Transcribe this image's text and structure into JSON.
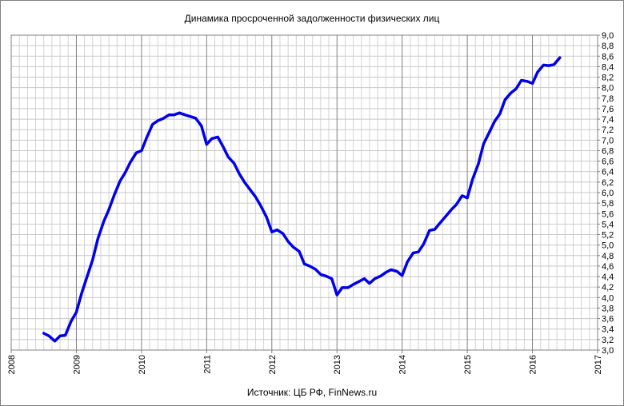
{
  "chart_data": {
    "type": "line",
    "title": "Динамика просроченной задолженности физических лиц",
    "source": "Источник: ЦБ РФ, FinNews.ru",
    "xlabel": "",
    "ylabel": "",
    "xlim": [
      2008,
      2017
    ],
    "ylim": [
      3.0,
      9.0
    ],
    "x_ticks": [
      "2008",
      "2009",
      "2010",
      "2011",
      "2012",
      "2013",
      "2014",
      "2015",
      "2016",
      "2017"
    ],
    "y_ticks": [
      "3,0",
      "3,2",
      "3,4",
      "3,6",
      "3,8",
      "4,0",
      "4,2",
      "4,4",
      "4,6",
      "4,8",
      "5,0",
      "5,2",
      "5,4",
      "5,6",
      "5,8",
      "6,0",
      "6,2",
      "6,4",
      "6,6",
      "6,8",
      "7,0",
      "7,2",
      "7,4",
      "7,6",
      "7,8",
      "8,0",
      "8,2",
      "8,4",
      "8,6",
      "8,8",
      "9,0"
    ],
    "grid": true,
    "line_color": "#0000ee",
    "series": [
      {
        "x": [
          2008.5,
          2008.58,
          2008.67,
          2008.75,
          2008.83,
          2008.92,
          2009.0,
          2009.08,
          2009.17,
          2009.25,
          2009.33,
          2009.42,
          2009.5,
          2009.58,
          2009.67,
          2009.75,
          2009.83,
          2009.92,
          2010.0,
          2010.08,
          2010.17,
          2010.25,
          2010.33,
          2010.42,
          2010.5,
          2010.58,
          2010.67,
          2010.75,
          2010.83,
          2010.92,
          2011.0,
          2011.08,
          2011.17,
          2011.25,
          2011.33,
          2011.42,
          2011.5,
          2011.58,
          2011.67,
          2011.75,
          2011.83,
          2011.92,
          2012.0,
          2012.08,
          2012.17,
          2012.25,
          2012.33,
          2012.42,
          2012.5,
          2012.58,
          2012.67,
          2012.75,
          2012.83,
          2012.92,
          2013.0,
          2013.08,
          2013.17,
          2013.25,
          2013.33,
          2013.42,
          2013.5,
          2013.58,
          2013.67,
          2013.75,
          2013.83,
          2013.92,
          2014.0,
          2014.08,
          2014.17,
          2014.25,
          2014.33,
          2014.42,
          2014.5,
          2014.58,
          2014.67,
          2014.75,
          2014.83,
          2014.92,
          2015.0,
          2015.08,
          2015.17,
          2015.25,
          2015.33,
          2015.42,
          2015.5,
          2015.58,
          2015.67,
          2015.75,
          2015.83,
          2015.92,
          2016.0,
          2016.08,
          2016.17,
          2016.25,
          2016.33,
          2016.42
        ],
        "y": [
          3.32,
          3.27,
          3.17,
          3.27,
          3.28,
          3.55,
          3.72,
          4.08,
          4.42,
          4.72,
          5.12,
          5.45,
          5.68,
          5.95,
          6.22,
          6.38,
          6.58,
          6.76,
          6.8,
          7.05,
          7.3,
          7.37,
          7.41,
          7.48,
          7.48,
          7.52,
          7.48,
          7.45,
          7.42,
          7.27,
          6.92,
          7.03,
          7.06,
          6.88,
          6.68,
          6.56,
          6.36,
          6.2,
          6.05,
          5.92,
          5.75,
          5.53,
          5.25,
          5.29,
          5.22,
          5.07,
          4.96,
          4.88,
          4.64,
          4.6,
          4.54,
          4.44,
          4.41,
          4.36,
          4.05,
          4.19,
          4.19,
          4.25,
          4.3,
          4.36,
          4.27,
          4.36,
          4.41,
          4.48,
          4.53,
          4.5,
          4.42,
          4.68,
          4.85,
          4.87,
          5.02,
          5.28,
          5.3,
          5.42,
          5.55,
          5.67,
          5.77,
          5.94,
          5.9,
          6.25,
          6.55,
          6.93,
          7.13,
          7.36,
          7.5,
          7.77,
          7.9,
          7.98,
          8.14,
          8.12,
          8.08,
          8.3,
          8.43,
          8.42,
          8.44,
          8.57
        ]
      }
    ]
  }
}
